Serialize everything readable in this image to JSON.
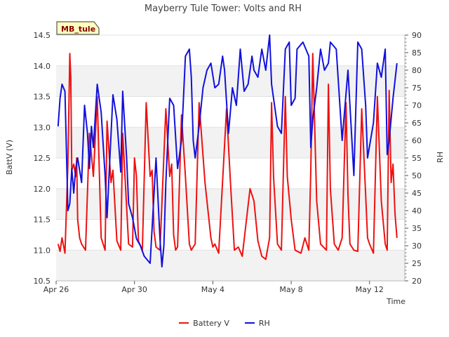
{
  "chart_data": {
    "type": "line",
    "title": "Mayberry Tule Tower: Volts and RH",
    "site_badge": "MB_tule",
    "xlabel": "Time",
    "ylabel": "BattV (V)",
    "y2label": "RH",
    "x_ticks": [
      {
        "day": 0,
        "label": "Apr 26"
      },
      {
        "day": 4,
        "label": "Apr 30"
      },
      {
        "day": 8,
        "label": "May 4"
      },
      {
        "day": 12,
        "label": "May 8"
      },
      {
        "day": 16,
        "label": "May 12"
      }
    ],
    "x_range_days": [
      0,
      17.8
    ],
    "ylim": [
      10.5,
      14.5
    ],
    "y_ticks": [
      "10.5",
      "11.0",
      "11.5",
      "12.0",
      "12.5",
      "13.0",
      "13.5",
      "14.0",
      "14.5"
    ],
    "y2lim": [
      20,
      90
    ],
    "y2_ticks": [
      "20",
      "25",
      "30",
      "35",
      "40",
      "45",
      "50",
      "55",
      "60",
      "65",
      "70",
      "75",
      "80",
      "85",
      "90"
    ],
    "series": [
      {
        "name": "Battery V",
        "color": "#ee1111",
        "axis": "left",
        "x": [
          0.1,
          0.2,
          0.3,
          0.45,
          0.6,
          0.7,
          0.75,
          0.8,
          0.9,
          1.0,
          1.05,
          1.1,
          1.2,
          1.3,
          1.5,
          1.7,
          1.9,
          2.1,
          2.3,
          2.5,
          2.6,
          2.8,
          2.9,
          3.1,
          3.3,
          3.4,
          3.55,
          3.7,
          3.9,
          4.0,
          4.1,
          4.2,
          4.4,
          4.6,
          4.8,
          4.9,
          5.0,
          5.1,
          5.3,
          5.6,
          5.8,
          5.9,
          6.0,
          6.1,
          6.2,
          6.4,
          6.6,
          6.8,
          6.9,
          7.0,
          7.1,
          7.3,
          7.6,
          7.9,
          8.0,
          8.1,
          8.3,
          8.7,
          8.9,
          9.1,
          9.3,
          9.5,
          9.9,
          10.1,
          10.3,
          10.5,
          10.7,
          10.9,
          11.0,
          11.1,
          11.3,
          11.5,
          11.7,
          11.8,
          12.0,
          12.2,
          12.5,
          12.7,
          12.9,
          13.0,
          13.1,
          13.3,
          13.5,
          13.8,
          13.9,
          14.0,
          14.2,
          14.4,
          14.6,
          14.8,
          14.9,
          15.0,
          15.2,
          15.4,
          15.6,
          15.8,
          15.9,
          16.0,
          16.2,
          16.4,
          16.6,
          16.8,
          16.9,
          17.0,
          17.1,
          17.2,
          17.3,
          17.4
        ],
        "values": [
          11.1,
          10.98,
          11.2,
          10.95,
          12.4,
          14.2,
          13.8,
          12.3,
          12.4,
          12.2,
          12.5,
          11.5,
          11.2,
          11.1,
          11.0,
          12.9,
          12.2,
          13.5,
          11.2,
          11.0,
          13.1,
          12.1,
          12.3,
          11.15,
          11.0,
          12.9,
          12.0,
          11.1,
          11.05,
          12.5,
          12.2,
          11.15,
          11.0,
          13.4,
          12.2,
          12.3,
          11.3,
          11.05,
          11.0,
          13.3,
          12.2,
          12.4,
          11.25,
          11.0,
          11.05,
          13.2,
          12.2,
          11.1,
          11.0,
          11.05,
          11.1,
          13.4,
          12.1,
          11.2,
          11.05,
          11.1,
          10.95,
          13.3,
          12.1,
          11.0,
          11.05,
          10.9,
          12.0,
          11.8,
          11.15,
          10.9,
          10.85,
          11.2,
          13.4,
          12.2,
          11.1,
          11.0,
          13.5,
          12.2,
          11.5,
          11.0,
          10.95,
          11.2,
          11.0,
          12.3,
          14.2,
          11.8,
          11.1,
          11.0,
          13.7,
          12.0,
          11.1,
          11.0,
          11.2,
          13.4,
          11.9,
          11.1,
          11.0,
          10.98,
          13.3,
          11.9,
          11.2,
          11.1,
          10.95,
          13.5,
          11.8,
          11.1,
          11.0,
          13.6,
          12.1,
          12.4,
          11.6,
          11.2
        ]
      },
      {
        "name": "RH",
        "color": "#1111dd",
        "axis": "right",
        "x": [
          0.1,
          0.2,
          0.3,
          0.45,
          0.6,
          0.7,
          0.8,
          0.9,
          1.0,
          1.1,
          1.3,
          1.45,
          1.6,
          1.7,
          1.8,
          1.9,
          2.1,
          2.3,
          2.5,
          2.6,
          2.7,
          2.9,
          3.1,
          3.3,
          3.4,
          3.6,
          3.7,
          3.9,
          4.1,
          4.3,
          4.5,
          4.8,
          4.9,
          5.1,
          5.3,
          5.4,
          5.5,
          5.6,
          5.8,
          6.0,
          6.2,
          6.4,
          6.6,
          6.8,
          6.9,
          7.0,
          7.1,
          7.3,
          7.5,
          7.7,
          7.9,
          8.1,
          8.3,
          8.5,
          8.6,
          8.8,
          9.0,
          9.2,
          9.4,
          9.6,
          9.8,
          10.0,
          10.1,
          10.3,
          10.5,
          10.7,
          10.9,
          11.0,
          11.3,
          11.5,
          11.7,
          11.9,
          12.0,
          12.2,
          12.3,
          12.6,
          12.9,
          13.0,
          13.1,
          13.3,
          13.5,
          13.7,
          13.9,
          14.0,
          14.3,
          14.6,
          14.9,
          15.0,
          15.2,
          15.4,
          15.6,
          15.8,
          15.9,
          16.2,
          16.4,
          16.6,
          16.8,
          16.9,
          17.0,
          17.2,
          17.4
        ],
        "values": [
          64,
          72,
          76,
          74,
          40,
          42,
          52,
          45,
          52,
          55,
          48,
          70,
          62,
          52,
          64,
          58,
          76,
          68,
          50,
          38,
          50,
          73,
          66,
          51,
          74,
          55,
          42,
          38,
          32,
          30,
          27,
          25,
          35,
          55,
          32,
          24,
          30,
          48,
          72,
          70,
          52,
          60,
          84,
          86,
          78,
          60,
          55,
          64,
          75,
          80,
          82,
          75,
          76,
          84,
          80,
          62,
          75,
          70,
          86,
          74,
          76,
          84,
          80,
          78,
          86,
          80,
          90,
          76,
          64,
          62,
          86,
          88,
          70,
          72,
          86,
          88,
          84,
          58,
          66,
          75,
          86,
          80,
          82,
          88,
          86,
          60,
          80,
          70,
          50,
          88,
          86,
          70,
          55,
          65,
          82,
          78,
          86,
          56,
          60,
          72,
          82
        ]
      }
    ]
  }
}
